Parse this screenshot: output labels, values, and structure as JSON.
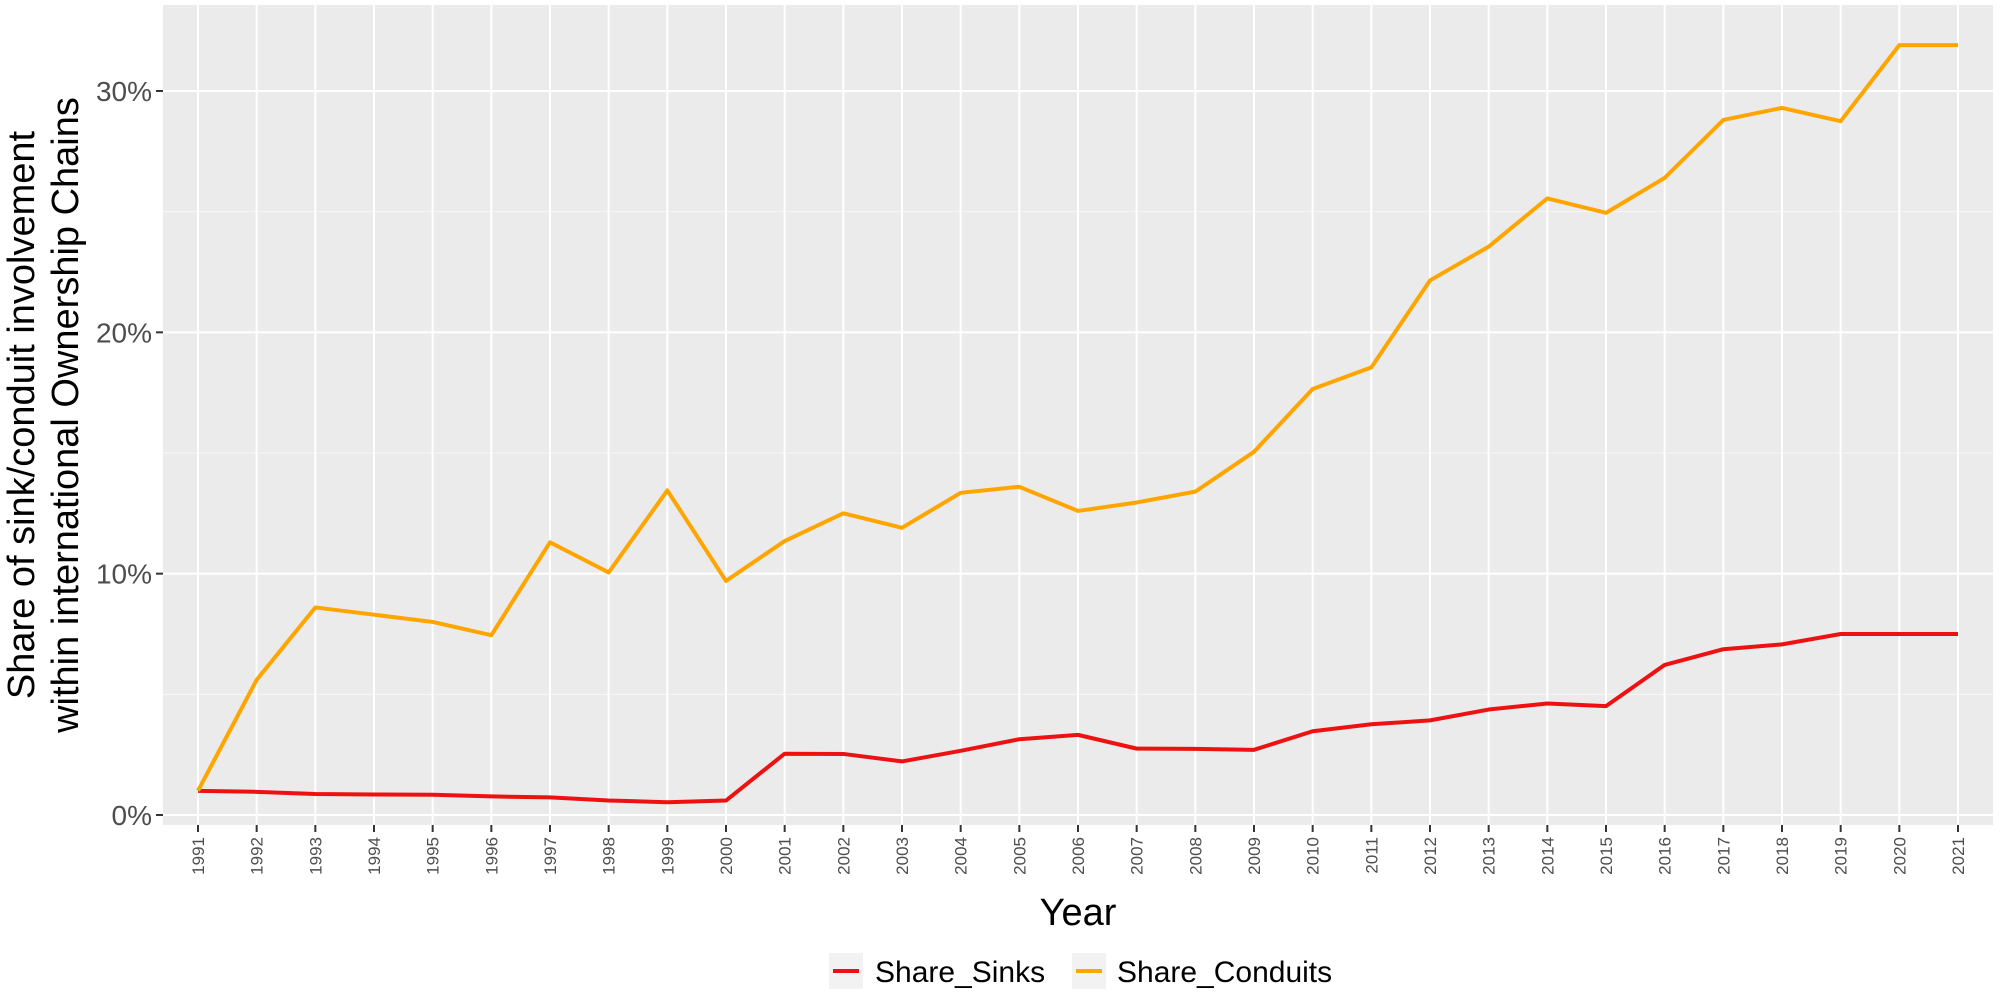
{
  "chart_data": {
    "type": "line",
    "title": "",
    "xlabel": "Year",
    "ylabel_lines": [
      "Share of sink/conduit involvement",
      "within international Ownership Chains"
    ],
    "x": [
      1991,
      1992,
      1993,
      1994,
      1995,
      1996,
      1997,
      1998,
      1999,
      2000,
      2001,
      2002,
      2003,
      2004,
      2005,
      2006,
      2007,
      2008,
      2009,
      2010,
      2011,
      2012,
      2013,
      2014,
      2015,
      2016,
      2017,
      2018,
      2019,
      2020,
      2021
    ],
    "x_tick_labels": [
      "1991",
      "1992",
      "1993",
      "1994",
      "1995",
      "1996",
      "1997",
      "1998",
      "1999",
      "2000",
      "2001",
      "2002",
      "2003",
      "2004",
      "2005",
      "2006",
      "2007",
      "2008",
      "2009",
      "2010",
      "2011",
      "2012",
      "2013",
      "2014",
      "2015",
      "2016",
      "2017",
      "2018",
      "2019",
      "2020",
      "2021"
    ],
    "ylim": [
      -0.008,
      0.335
    ],
    "y_ticks": [
      0,
      0.1,
      0.2,
      0.3
    ],
    "y_tick_labels": [
      "0%",
      "10%",
      "20%",
      "30%"
    ],
    "grid": true,
    "legend_position": "bottom",
    "series": [
      {
        "name": "Share_Sinks",
        "color": "#ee1111",
        "values": [
          0.01,
          0.0096,
          0.0087,
          0.0085,
          0.0084,
          0.0077,
          0.0073,
          0.006,
          0.0053,
          0.006,
          0.0254,
          0.0253,
          0.0222,
          0.0266,
          0.0314,
          0.0332,
          0.0275,
          0.0274,
          0.027,
          0.0347,
          0.0376,
          0.0392,
          0.0437,
          0.0462,
          0.0451,
          0.0622,
          0.0687,
          0.0707,
          0.075,
          0.075,
          0.075
        ]
      },
      {
        "name": "Share_Conduits",
        "color": "#ffa500",
        "values": [
          0.01,
          0.056,
          0.086,
          0.083,
          0.08,
          0.0745,
          0.113,
          0.1005,
          0.1345,
          0.097,
          0.1135,
          0.125,
          0.119,
          0.1335,
          0.136,
          0.126,
          0.1295,
          0.134,
          0.1505,
          0.1765,
          0.1855,
          0.2215,
          0.2355,
          0.2555,
          0.2495,
          0.264,
          0.288,
          0.293,
          0.2875,
          0.319,
          0.319
        ]
      }
    ]
  }
}
